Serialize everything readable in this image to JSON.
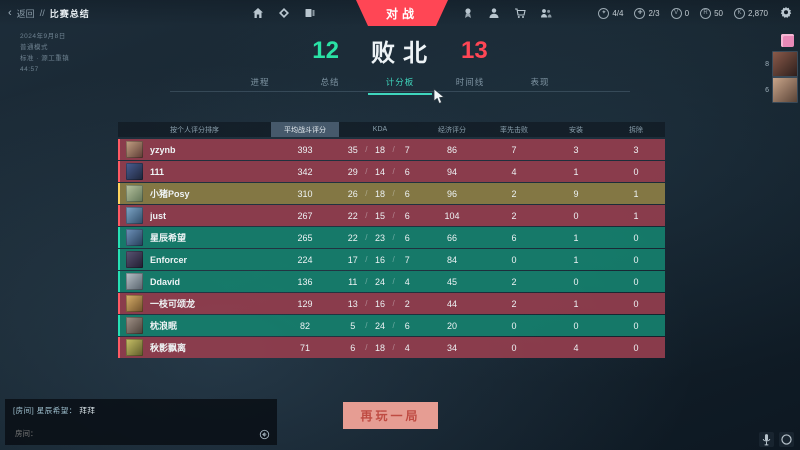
{
  "topbar": {
    "back": "返回",
    "separator": "//",
    "breadcrumb": "比赛总结",
    "banner": "对战",
    "currencies": [
      {
        "name": "daily-icon",
        "glyph": "✦",
        "value": "4/4"
      },
      {
        "name": "progress-icon",
        "glyph": "✚",
        "value": "2/3"
      },
      {
        "name": "vp-icon",
        "glyph": "V",
        "value": "0"
      },
      {
        "name": "radianite-icon",
        "glyph": "R",
        "value": "50"
      },
      {
        "name": "credits-icon",
        "glyph": "K",
        "value": "2,870"
      }
    ]
  },
  "match_info": {
    "date": "2024年9月8日",
    "mode": "普通模式",
    "map": "标准 · 源工重镇",
    "duration": "44:57"
  },
  "score_header": {
    "ally_score": "12",
    "result": "败北",
    "enemy_score": "13"
  },
  "tabs": [
    {
      "label": "进程",
      "active": false
    },
    {
      "label": "总结",
      "active": false
    },
    {
      "label": "计分板",
      "active": true
    },
    {
      "label": "时间线",
      "active": false
    },
    {
      "label": "表现",
      "active": false
    }
  ],
  "scoreboard": {
    "sort_header": "按个人评分排序",
    "columns": [
      "平均战斗评分",
      "KDA",
      "经济评分",
      "率先击败",
      "安装",
      "拆除"
    ],
    "kda_separator": "/",
    "rows": [
      {
        "name": "yzynb",
        "team": "enemy",
        "acs": "393",
        "k": "35",
        "d": "18",
        "a": "7",
        "econ": "86",
        "fb": "7",
        "plants": "3",
        "defuses": "3",
        "avatar": [
          "#c4a184",
          "#5b3a33"
        ]
      },
      {
        "name": "111",
        "team": "enemy",
        "acs": "342",
        "k": "29",
        "d": "14",
        "a": "6",
        "econ": "94",
        "fb": "4",
        "plants": "1",
        "defuses": "0",
        "avatar": [
          "#4a5f93",
          "#1d2438"
        ]
      },
      {
        "name": "小猪Posy",
        "team": "self",
        "acs": "310",
        "k": "26",
        "d": "18",
        "a": "6",
        "econ": "96",
        "fb": "2",
        "plants": "9",
        "defuses": "1",
        "avatar": [
          "#b8c4a0",
          "#5f7355"
        ]
      },
      {
        "name": "just",
        "team": "enemy",
        "acs": "267",
        "k": "22",
        "d": "15",
        "a": "6",
        "econ": "104",
        "fb": "2",
        "plants": "0",
        "defuses": "1",
        "avatar": [
          "#7fa7c9",
          "#2e4a66"
        ]
      },
      {
        "name": "星辰希望",
        "team": "ally",
        "acs": "265",
        "k": "22",
        "d": "23",
        "a": "6",
        "econ": "66",
        "fb": "6",
        "plants": "1",
        "defuses": "0",
        "avatar": [
          "#6f93bb",
          "#243c57"
        ]
      },
      {
        "name": "Enforcer",
        "team": "ally",
        "acs": "224",
        "k": "17",
        "d": "16",
        "a": "7",
        "econ": "84",
        "fb": "0",
        "plants": "1",
        "defuses": "0",
        "avatar": [
          "#5a5574",
          "#201c30"
        ]
      },
      {
        "name": "Ddavid",
        "team": "ally",
        "acs": "136",
        "k": "11",
        "d": "24",
        "a": "4",
        "econ": "45",
        "fb": "2",
        "plants": "0",
        "defuses": "0",
        "avatar": [
          "#b9c2c9",
          "#55606a"
        ]
      },
      {
        "name": "一枝可颂龙",
        "team": "enemy",
        "acs": "129",
        "k": "13",
        "d": "16",
        "a": "2",
        "econ": "44",
        "fb": "2",
        "plants": "1",
        "defuses": "0",
        "avatar": [
          "#d9b06a",
          "#6e4f2a"
        ]
      },
      {
        "name": "枕浪眠",
        "team": "ally",
        "acs": "82",
        "k": "5",
        "d": "24",
        "a": "6",
        "econ": "20",
        "fb": "0",
        "plants": "0",
        "defuses": "0",
        "avatar": [
          "#a3948a",
          "#4a3f38"
        ]
      },
      {
        "name": "秋影飘离",
        "team": "enemy",
        "acs": "71",
        "k": "6",
        "d": "18",
        "a": "4",
        "econ": "34",
        "fb": "0",
        "plants": "4",
        "defuses": "0",
        "avatar": [
          "#c9c167",
          "#5d5a2a"
        ]
      }
    ]
  },
  "chat": {
    "prefix": "[房间] 星辰希望：",
    "message": "拜拜",
    "input_label": "房间："
  },
  "actions": {
    "play_again": "再玩一局"
  },
  "social_rail": {
    "items": [
      {
        "badge": "8",
        "avatar": [
          "#8a5a4a",
          "#2e1f1c"
        ]
      },
      {
        "badge": "6",
        "avatar": [
          "#c9a58a",
          "#5a4437"
        ]
      }
    ]
  },
  "colors": {
    "banner_red": "#ff4655",
    "ally_green": "#2ae2a5",
    "enemy_red": "#ff4655",
    "tab_active": "#3fd6bd",
    "row_enemy": "#923d4e",
    "row_ally": "#157f6d",
    "row_self": "#897b44"
  }
}
